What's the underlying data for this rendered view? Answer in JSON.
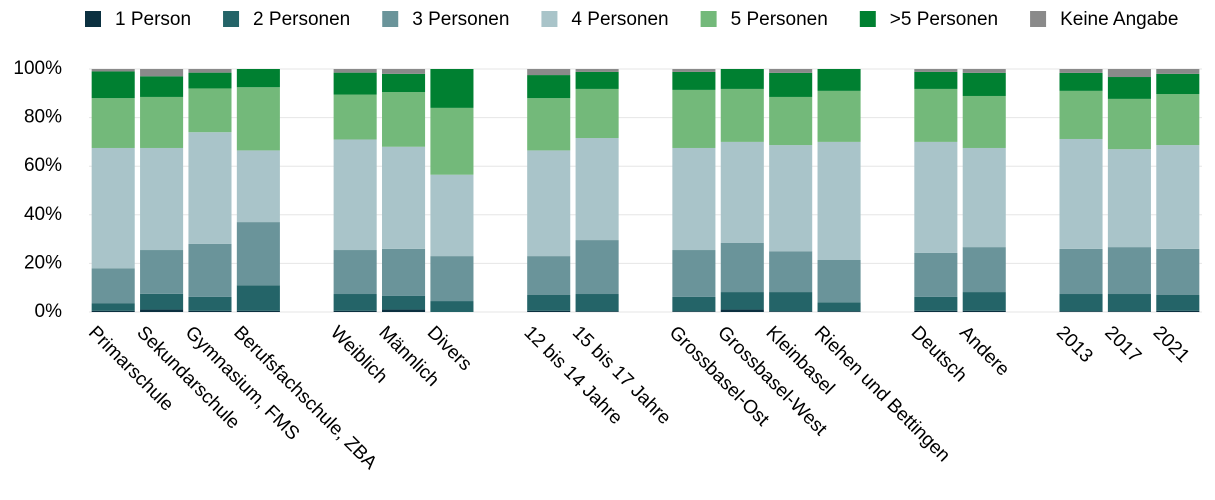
{
  "chart_data": {
    "type": "stacked_bar",
    "categories": [
      "Primarschule",
      "Sekundarschule",
      "Gymnasium, FMS",
      "Berufsfachschule, ZBA",
      null,
      "Weiblich",
      "Männlich",
      "Divers",
      null,
      "12 bis 14 Jahre",
      "15 bis 17 Jahre",
      null,
      "Grossbasel-Ost",
      "Grossbasel-West",
      "Kleinbasel",
      "Riehen und Bettingen",
      null,
      "Deutsch",
      "Andere",
      null,
      "2013",
      "2017",
      "2021"
    ],
    "series": [
      {
        "name": "1 Person",
        "color": "#0b3040",
        "values": [
          0.5,
          1,
          0.5,
          0.5,
          null,
          0.5,
          1,
          0,
          null,
          0.5,
          0.3,
          null,
          0.3,
          1,
          0.3,
          0.3,
          null,
          0.5,
          0.5,
          null,
          0.3,
          0.3,
          0.5
        ]
      },
      {
        "name": "2 Personen",
        "color": "#246468",
        "values": [
          3,
          6.5,
          5.7,
          10.5,
          null,
          6.9,
          5.6,
          4.5,
          null,
          6.5,
          7.1,
          null,
          5.9,
          7.2,
          7.9,
          3.7,
          null,
          5.7,
          7.7,
          null,
          7.1,
          7.1,
          6.5
        ]
      },
      {
        "name": "3 Personen",
        "color": "#6a949a",
        "values": [
          14.5,
          18,
          21.8,
          26,
          null,
          18.1,
          19.4,
          18.5,
          null,
          16,
          22.2,
          null,
          19.3,
          20.2,
          16.8,
          17.4,
          null,
          18.1,
          18.5,
          null,
          18.6,
          19.3,
          19
        ]
      },
      {
        "name": "4 Personen",
        "color": "#a9c4c9",
        "values": [
          49.5,
          42,
          46,
          29.5,
          null,
          45.5,
          42,
          33.5,
          null,
          43.5,
          42,
          null,
          42,
          41.6,
          43.7,
          48.6,
          null,
          45.7,
          40.8,
          null,
          45.2,
          40.3,
          42.7
        ]
      },
      {
        "name": "5 Personen",
        "color": "#73b97a",
        "values": [
          20.5,
          21,
          18,
          26,
          null,
          18.5,
          22.5,
          27.5,
          null,
          21.5,
          20.2,
          null,
          23.9,
          21.8,
          19.8,
          21,
          null,
          21.8,
          21.4,
          null,
          19.8,
          20.7,
          21
        ]
      },
      {
        "name": ">5 Personen",
        "color": "#008031",
        "values": [
          11,
          8.5,
          6.5,
          7.5,
          null,
          9,
          7.5,
          16,
          null,
          9.5,
          7,
          null,
          7.4,
          8.2,
          9.9,
          9,
          null,
          7,
          9.5,
          null,
          7.4,
          9,
          8.3
        ]
      },
      {
        "name": "Keine Angabe",
        "color": "#8a8a8a",
        "values": [
          1,
          3,
          1.5,
          0,
          null,
          1.5,
          2,
          0,
          null,
          2.5,
          1.2,
          null,
          1.2,
          0,
          1.6,
          0,
          null,
          1.2,
          1.6,
          null,
          1.6,
          3.3,
          2
        ]
      }
    ],
    "ylim": [
      0,
      100
    ],
    "yticks": [
      {
        "value": 0,
        "label": "0%"
      },
      {
        "value": 20,
        "label": "20%"
      },
      {
        "value": 40,
        "label": "40%"
      },
      {
        "value": 60,
        "label": "60%"
      },
      {
        "value": 80,
        "label": "80%"
      },
      {
        "value": 100,
        "label": "100%"
      }
    ],
    "grid": true
  }
}
